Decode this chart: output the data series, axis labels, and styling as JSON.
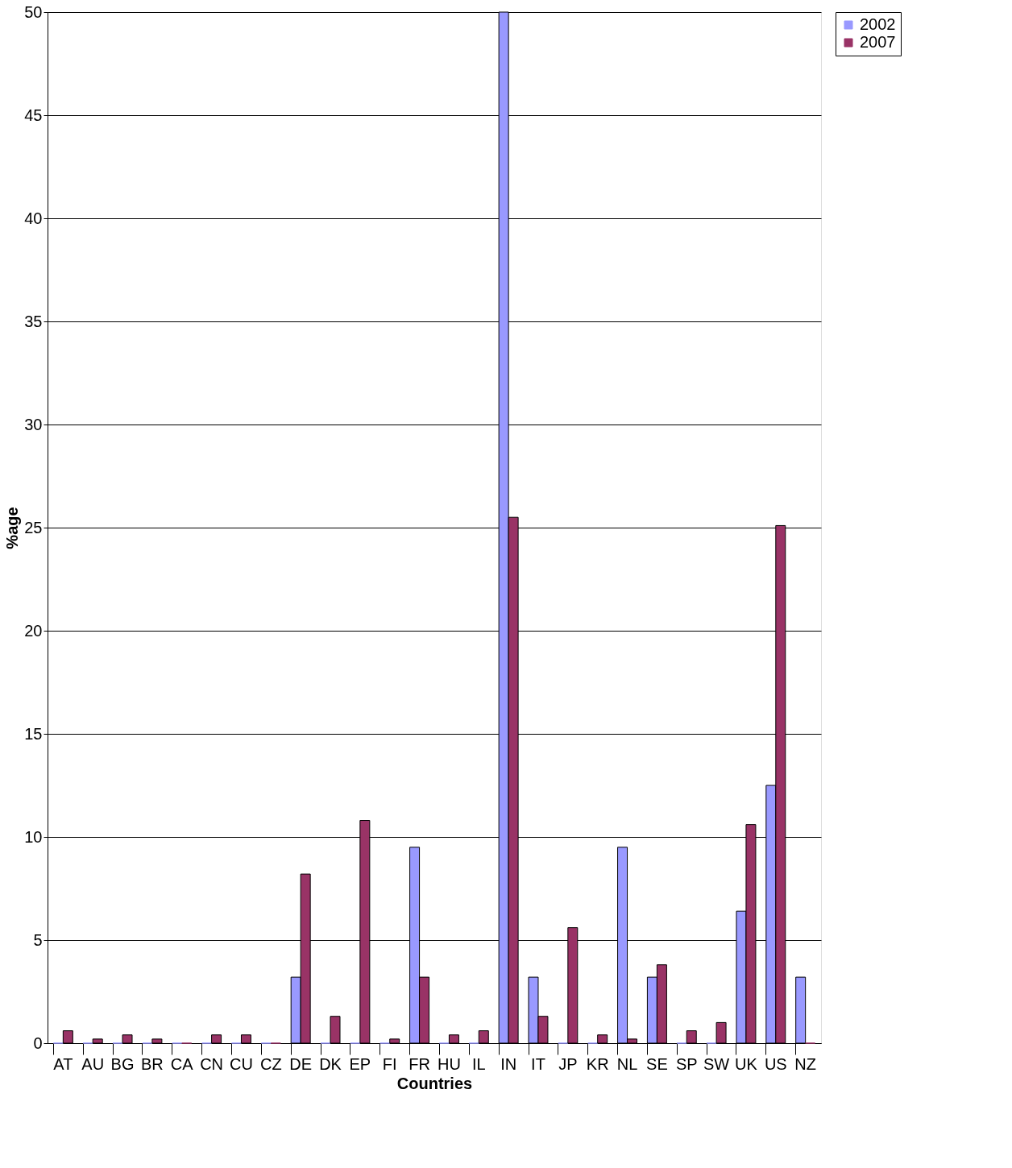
{
  "chart_data": {
    "type": "bar",
    "xlabel": "Countries",
    "ylabel": "%age",
    "categories": [
      "AT",
      "AU",
      "BG",
      "BR",
      "CA",
      "CN",
      "CU",
      "CZ",
      "DE",
      "DK",
      "EP",
      "FI",
      "FR",
      "HU",
      "IL",
      "IN",
      "IT",
      "JP",
      "KR",
      "NL",
      "SE",
      "SP",
      "SW",
      "UK",
      "US",
      "NZ"
    ],
    "series": [
      {
        "name": "2002",
        "color": "#9999ff",
        "values": [
          0,
          0,
          0,
          0,
          0,
          0,
          0,
          0,
          3.2,
          0,
          0,
          0,
          9.5,
          0,
          0,
          50,
          3.2,
          0,
          0,
          9.5,
          3.2,
          0,
          0,
          6.4,
          12.5,
          3.2
        ]
      },
      {
        "name": "2007",
        "color": "#993366",
        "values": [
          0.6,
          0.2,
          0.4,
          0.2,
          0,
          0.4,
          0.4,
          0,
          8.2,
          1.3,
          10.8,
          0.2,
          3.2,
          0.4,
          0.6,
          25.5,
          1.3,
          5.6,
          0.4,
          0.2,
          3.8,
          0.6,
          1.0,
          10.6,
          25.1,
          0
        ]
      }
    ],
    "ylim": [
      0,
      50
    ],
    "yticks": [
      0,
      5,
      10,
      15,
      20,
      25,
      30,
      35,
      40,
      45,
      50
    ],
    "grid": "y",
    "legend": "right"
  }
}
